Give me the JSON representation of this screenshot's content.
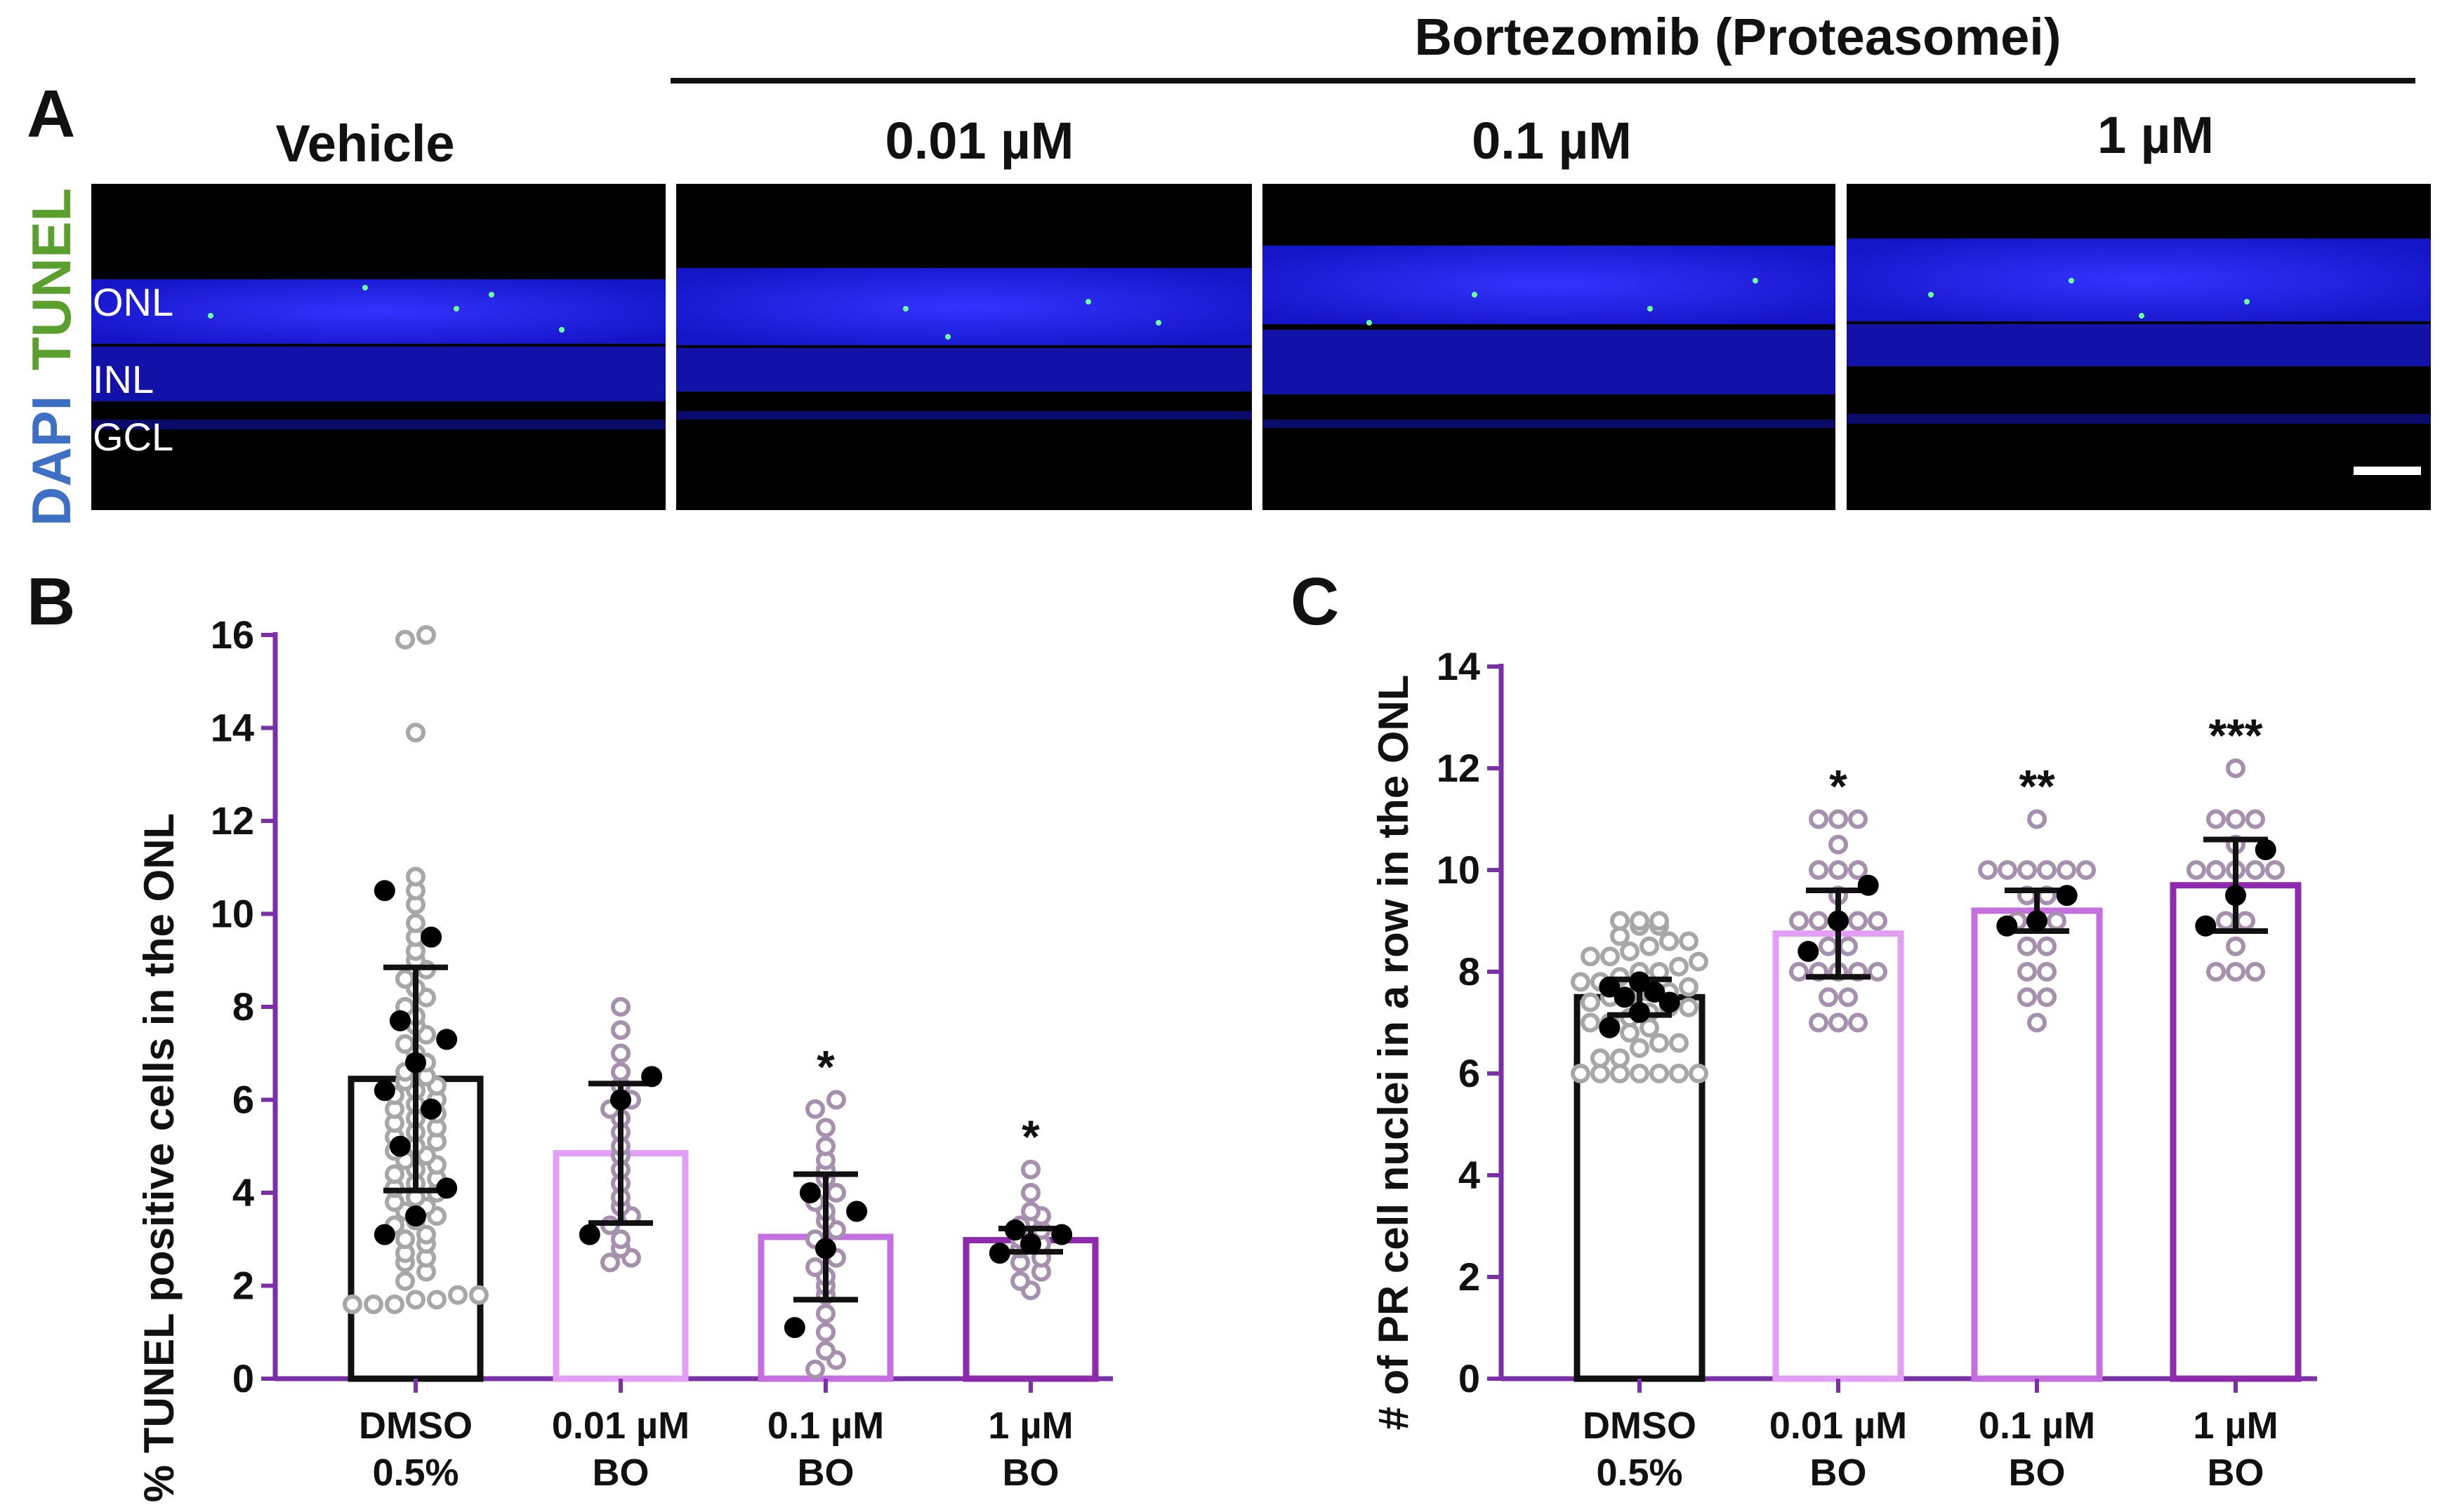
{
  "panels": {
    "a": "A",
    "b": "B",
    "c": "C"
  },
  "header": {
    "drug": "Bortezomib (Proteasomei)"
  },
  "images": [
    {
      "label": "Vehicle"
    },
    {
      "label": "0.01 µM"
    },
    {
      "label": "0.1 µM"
    },
    {
      "label": "1 µM"
    }
  ],
  "stain": {
    "dapi": "DAPI",
    "tunel": "TUNEL",
    "dapi_color": "#3d6fc4",
    "tunel_color": "#5aa02c"
  },
  "layers": {
    "onl": "ONL",
    "inl": "INL",
    "gcl": "GCL"
  },
  "colors": {
    "axis": "#7b2fa8",
    "bar_edges": [
      "#111111",
      "#e39ff5",
      "#c56ee0",
      "#8e2aad"
    ],
    "open_dots": "#a591ad",
    "dmso_dots": "#a7a7a7",
    "mean_dots": "#000000"
  },
  "chart_data": [
    {
      "id": "B",
      "type": "bar",
      "ylabel": "% TUNEL positive cells in the ONL",
      "ylim": [
        0,
        16
      ],
      "yticks": [
        "0",
        "2",
        "4",
        "6",
        "8",
        "10",
        "12",
        "14",
        "16"
      ],
      "categories": [
        {
          "line1": "DMSO",
          "line2": "0.5%"
        },
        {
          "line1": "0.01 µM",
          "line2": "BO"
        },
        {
          "line1": "0.1 µM",
          "line2": "BO"
        },
        {
          "line1": "1 µM",
          "line2": "BO"
        }
      ],
      "means": [
        6.45,
        4.85,
        3.05,
        2.98
      ],
      "sd": [
        2.4,
        1.5,
        1.35,
        0.25
      ],
      "significance": [
        "",
        "",
        "*",
        "*"
      ],
      "means_per_animal": [
        [
          3.1,
          3.5,
          4.1,
          5.0,
          5.8,
          6.2,
          6.8,
          7.3,
          7.7,
          9.5,
          10.5
        ],
        [
          3.1,
          6.0,
          6.5
        ],
        [
          1.1,
          2.8,
          3.6,
          4.0
        ],
        [
          2.7,
          2.9,
          3.1,
          3.2
        ]
      ],
      "individual_points": [
        [
          1.6,
          1.6,
          1.6,
          1.7,
          1.7,
          1.8,
          1.8,
          2.1,
          2.3,
          2.5,
          2.6,
          2.7,
          2.9,
          3.0,
          3.1,
          3.3,
          3.4,
          3.5,
          3.6,
          3.7,
          3.8,
          3.9,
          4.0,
          4.1,
          4.2,
          4.3,
          4.4,
          4.5,
          4.6,
          4.7,
          4.8,
          4.9,
          5.0,
          5.1,
          5.2,
          5.3,
          5.4,
          5.5,
          5.6,
          5.7,
          5.8,
          5.9,
          6.0,
          6.1,
          6.2,
          6.3,
          6.4,
          6.5,
          6.6,
          6.8,
          7.0,
          7.2,
          7.4,
          7.6,
          7.8,
          8.0,
          8.2,
          8.4,
          8.6,
          8.8,
          9.0,
          9.2,
          9.5,
          9.8,
          10.2,
          10.5,
          10.8,
          13.9,
          15.9,
          16.0
        ],
        [
          2.5,
          2.6,
          2.8,
          3.0,
          3.3,
          3.5,
          3.7,
          3.9,
          4.2,
          4.5,
          4.8,
          5.0,
          5.3,
          5.6,
          5.8,
          6.0,
          6.3,
          6.6,
          7.0,
          7.5,
          8.0
        ],
        [
          0.2,
          0.4,
          0.6,
          1.0,
          1.4,
          1.8,
          2.0,
          2.2,
          2.4,
          2.6,
          2.8,
          3.0,
          3.2,
          3.4,
          3.6,
          3.8,
          4.0,
          4.3,
          4.5,
          4.7,
          5.0,
          5.4,
          5.8,
          6.0
        ],
        [
          1.9,
          2.1,
          2.3,
          2.5,
          2.6,
          2.8,
          2.9,
          3.0,
          3.2,
          3.3,
          3.5,
          3.6,
          4.0,
          4.5
        ]
      ]
    },
    {
      "id": "C",
      "type": "bar",
      "ylabel": "# of PR cell nuclei in a row in the ONL",
      "ylim": [
        0,
        14
      ],
      "yticks": [
        "0",
        "2",
        "4",
        "6",
        "8",
        "10",
        "12",
        "14"
      ],
      "categories": [
        {
          "line1": "DMSO",
          "line2": "0.5%"
        },
        {
          "line1": "0.01 µM",
          "line2": "BO"
        },
        {
          "line1": "0.1 µM",
          "line2": "BO"
        },
        {
          "line1": "1 µM",
          "line2": "BO"
        }
      ],
      "means": [
        7.5,
        8.75,
        9.2,
        9.7
      ],
      "sd": [
        0.35,
        0.85,
        0.4,
        0.9
      ],
      "significance": [
        "",
        "*",
        "**",
        "***"
      ],
      "means_per_animal": [
        [
          6.9,
          7.2,
          7.4,
          7.5,
          7.6,
          7.7,
          7.8
        ],
        [
          8.4,
          9.0,
          9.7
        ],
        [
          8.9,
          9.0,
          9.5
        ],
        [
          8.9,
          9.5,
          10.4
        ]
      ],
      "individual_points": [
        [
          6.0,
          6.0,
          6.0,
          6.0,
          6.0,
          6.0,
          6.0,
          6.3,
          6.3,
          6.5,
          6.6,
          6.6,
          6.8,
          6.9,
          7.0,
          7.0,
          7.1,
          7.2,
          7.3,
          7.3,
          7.4,
          7.5,
          7.5,
          7.6,
          7.6,
          7.7,
          7.8,
          7.8,
          7.9,
          8.0,
          8.0,
          8.1,
          8.2,
          8.3,
          8.3,
          8.4,
          8.5,
          8.6,
          8.6,
          8.7,
          8.9,
          8.9,
          9.0,
          9.0,
          9.0
        ],
        [
          7.0,
          7.0,
          7.0,
          7.5,
          7.5,
          8.0,
          8.0,
          8.0,
          8.0,
          8.0,
          8.5,
          8.5,
          9.0,
          9.0,
          9.0,
          9.0,
          9.0,
          9.5,
          10.0,
          10.0,
          10.0,
          10.5,
          11.0,
          11.0,
          11.0
        ],
        [
          7.0,
          7.5,
          7.5,
          8.0,
          8.0,
          8.5,
          8.5,
          9.0,
          9.0,
          9.0,
          9.5,
          9.5,
          10.0,
          10.0,
          10.0,
          10.0,
          10.0,
          10.0,
          11.0
        ],
        [
          8.0,
          8.0,
          8.0,
          8.5,
          9.0,
          9.0,
          9.5,
          10.0,
          10.0,
          10.0,
          10.0,
          10.0,
          10.5,
          11.0,
          11.0,
          11.0,
          12.0
        ]
      ]
    }
  ]
}
